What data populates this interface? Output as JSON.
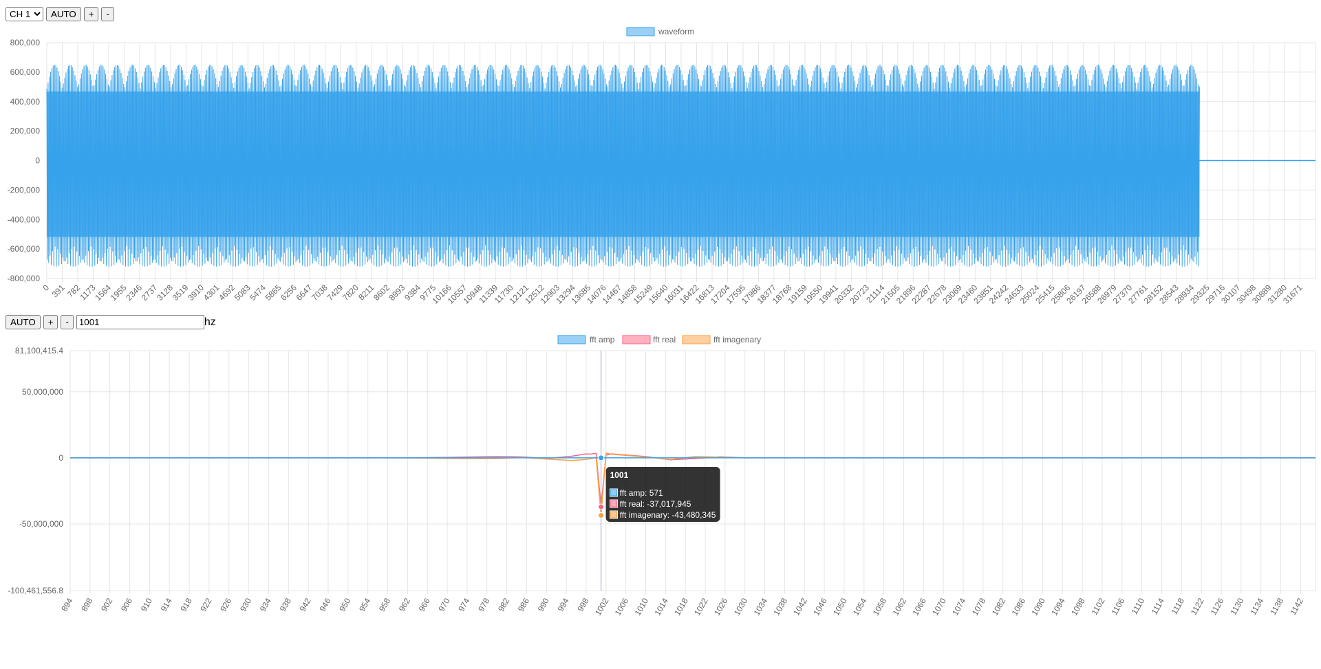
{
  "controls_top": {
    "channel_options": [
      "CH 1"
    ],
    "channel_value": "CH 1",
    "auto": "AUTO",
    "plus": "+",
    "minus": "-"
  },
  "controls_fft": {
    "auto": "AUTO",
    "plus": "+",
    "minus": "-",
    "freq_value": "1001",
    "unit": "hz"
  },
  "colors": {
    "blue": "#36a2eb",
    "red": "#ff6384",
    "orange": "#ff9f40",
    "grid": "#e5e5e5"
  },
  "chart_data": [
    {
      "type": "line",
      "series": [
        {
          "name": "waveform",
          "color": "#36a2eb"
        }
      ],
      "legend": "top",
      "ylim": [
        -800000,
        800000
      ],
      "y_ticks": [
        "800,000",
        "600,000",
        "400,000",
        "200,000",
        "0",
        "-200,000",
        "-400,000",
        "-600,000",
        "-800,000"
      ],
      "x_ticks": [
        "0",
        "391",
        "782",
        "1173",
        "1564",
        "1955",
        "2346",
        "2737",
        "3128",
        "3519",
        "3910",
        "4301",
        "4692",
        "5083",
        "5474",
        "5865",
        "6256",
        "6647",
        "7038",
        "7429",
        "7820",
        "8211",
        "8602",
        "8993",
        "9384",
        "9775",
        "10166",
        "10557",
        "10948",
        "11339",
        "11730",
        "12121",
        "12512",
        "12903",
        "13294",
        "13685",
        "14076",
        "14467",
        "14858",
        "15249",
        "15640",
        "16031",
        "16422",
        "16813",
        "17204",
        "17595",
        "17986",
        "18377",
        "18768",
        "19159",
        "19550",
        "19941",
        "20332",
        "20723",
        "21114",
        "21505",
        "21896",
        "22287",
        "22678",
        "23069",
        "23460",
        "23851",
        "24242",
        "24633",
        "25024",
        "25415",
        "25806",
        "26197",
        "26588",
        "26979",
        "27370",
        "27761",
        "28152",
        "28543",
        "28934",
        "29325",
        "29716",
        "30107",
        "30498",
        "30889",
        "31280",
        "31671"
      ],
      "xlim": [
        0,
        32062
      ],
      "signal_end_x": 29130,
      "envelope_max": 650000,
      "envelope_min": -720000,
      "grid": true
    },
    {
      "type": "line",
      "series": [
        {
          "name": "fft amp",
          "color": "#36a2eb"
        },
        {
          "name": "fft real",
          "color": "#ff6384"
        },
        {
          "name": "fft imagenary",
          "color": "#ff9f40"
        }
      ],
      "legend": "top",
      "ylim": [
        -100461556.8,
        81100415.4
      ],
      "y_ticks": [
        {
          "label": "81,100,415.4",
          "value": 81100415.4
        },
        {
          "label": "50,000,000",
          "value": 50000000
        },
        {
          "label": "0",
          "value": 0
        },
        {
          "label": "-50,000,000",
          "value": -50000000
        },
        {
          "label": "-100,461,556.8",
          "value": -100461556.8
        }
      ],
      "xlim": [
        894,
        1145
      ],
      "x_ticks": [
        "894",
        "898",
        "902",
        "906",
        "910",
        "914",
        "918",
        "922",
        "926",
        "930",
        "934",
        "938",
        "942",
        "946",
        "950",
        "954",
        "958",
        "962",
        "966",
        "970",
        "974",
        "978",
        "982",
        "986",
        "990",
        "994",
        "998",
        "1002",
        "1006",
        "1010",
        "1014",
        "1018",
        "1022",
        "1026",
        "1030",
        "1034",
        "1038",
        "1042",
        "1046",
        "1050",
        "1054",
        "1058",
        "1062",
        "1066",
        "1070",
        "1074",
        "1078",
        "1082",
        "1086",
        "1090",
        "1094",
        "1098",
        "1102",
        "1106",
        "1110",
        "1114",
        "1118",
        "1122",
        "1126",
        "1130",
        "1134",
        "1138",
        "1142"
      ],
      "hover_x": 1001,
      "tooltip": {
        "title": "1001",
        "lines": [
          "fft amp: 571",
          "fft real: -37,017,945",
          "fft imagenary: -43,480,345"
        ]
      },
      "points": {
        "x": [
          894,
          960,
          970,
          980,
          985,
          990,
          995,
          998,
          999,
          1000,
          1001,
          1002,
          1003,
          1005,
          1010,
          1015,
          1020,
          1025,
          1030,
          1040,
          1145
        ],
        "real": [
          0,
          0,
          300000,
          1000000,
          700000,
          -500000,
          1200000,
          3000000,
          2800000,
          3500000,
          -37017945,
          2000000,
          3000000,
          2500000,
          1000000,
          -1500000,
          -500000,
          800000,
          0,
          0,
          0
        ],
        "imag": [
          0,
          0,
          -400000,
          -600000,
          300000,
          -900000,
          -2000000,
          -1200000,
          -700000,
          500000,
          -43480345,
          3600000,
          2800000,
          2200000,
          600000,
          -1200000,
          1000000,
          500000,
          0,
          0,
          0
        ],
        "amp": [
          0,
          0,
          0,
          0,
          0,
          0,
          0,
          0,
          0,
          0,
          571,
          0,
          0,
          0,
          0,
          0,
          0,
          0,
          0,
          0,
          0
        ]
      },
      "grid": true
    }
  ]
}
